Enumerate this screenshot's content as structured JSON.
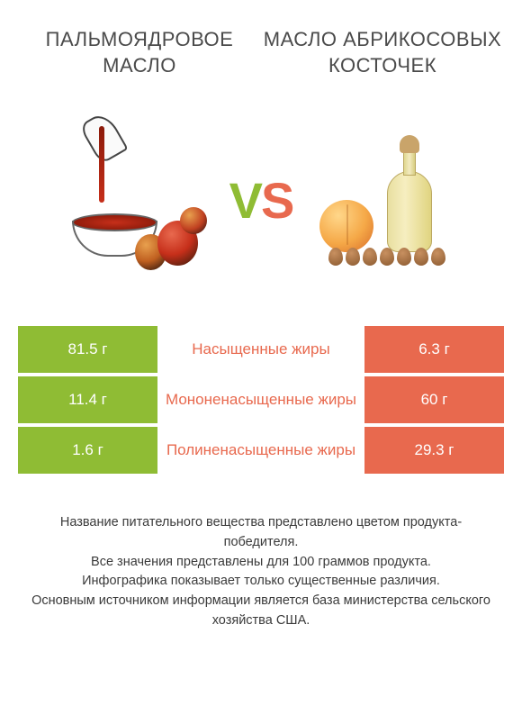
{
  "left_product": {
    "title": "ПАЛЬМОЯДРОВОЕ МАСЛО"
  },
  "right_product": {
    "title": "МАСЛО АБРИКОСОВЫХ КОСТОЧЕК"
  },
  "vs": {
    "v": "V",
    "s": "S"
  },
  "colors": {
    "winner": "#8fbc34",
    "loser": "#e8694e",
    "nutrient_text": "#e8694e",
    "body_text": "#3a3a3a"
  },
  "comparison": {
    "type": "table",
    "rows": [
      {
        "nutrient": "Насыщенные жиры",
        "left": {
          "value": "81.5 г",
          "winner": true
        },
        "right": {
          "value": "6.3 г",
          "winner": false
        }
      },
      {
        "nutrient": "Мононенасыщенные жиры",
        "left": {
          "value": "11.4 г",
          "winner": true
        },
        "right": {
          "value": "60 г",
          "winner": false
        }
      },
      {
        "nutrient": "Полиненасыщенные жиры",
        "left": {
          "value": "1.6 г",
          "winner": true
        },
        "right": {
          "value": "29.3 г",
          "winner": false
        }
      }
    ]
  },
  "footer": {
    "l1": "Название питательного вещества представлено цветом продукта-победителя.",
    "l2": "Все значения представлены для 100 граммов продукта.",
    "l3": "Инфографика показывает только существенные различия.",
    "l4": "Основным источником информации является база министерства сельского хозяйства США."
  }
}
